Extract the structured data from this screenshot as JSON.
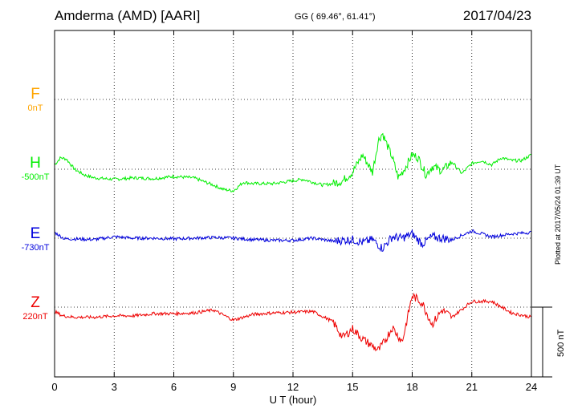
{
  "header": {
    "title": "Amderma (AMD)  [AARI]",
    "coords": "GG ( 69.46°,  61.41°)",
    "date": "2017/04/23"
  },
  "footer": {
    "plotted": "Plotted at 2017/05/24 01:39 UT",
    "scale": "500 nT"
  },
  "components": [
    {
      "letter": "F",
      "base": "0nT",
      "color": "#ffa500"
    },
    {
      "letter": "H",
      "base": "-500nT",
      "color": "#00ee00"
    },
    {
      "letter": "E",
      "base": "-730nT",
      "color": "#0000dd"
    },
    {
      "letter": "Z",
      "base": "220nT",
      "color": "#ee0000"
    }
  ],
  "chart_data": {
    "type": "line",
    "xlabel": "U T (hour)",
    "xlim": [
      0,
      24
    ],
    "xticks": [
      "0",
      "3",
      "6",
      "9",
      "12",
      "15",
      "18",
      "21",
      "24"
    ],
    "grid": true,
    "scale_bar_nT": 500,
    "series": [
      {
        "name": "H",
        "color": "#00ee00",
        "baseline_nT": -500,
        "x": [
          0,
          0.3,
          0.6,
          1,
          1.5,
          2,
          3,
          4,
          5,
          6,
          7,
          8,
          8.5,
          9,
          9.5,
          10,
          11,
          12,
          12.5,
          13,
          13.5,
          14,
          14.5,
          15,
          15.5,
          16,
          16.3,
          16.5,
          16.7,
          17,
          17.3,
          17.6,
          18,
          18.3,
          18.7,
          19,
          19.5,
          20,
          20.5,
          21,
          21.5,
          22,
          22.5,
          23,
          23.5,
          24
        ],
        "values": [
          -470,
          -420,
          -430,
          -500,
          -540,
          -560,
          -570,
          -560,
          -565,
          -550,
          -560,
          -610,
          -640,
          -650,
          -590,
          -600,
          -600,
          -580,
          -570,
          -590,
          -610,
          -600,
          -580,
          -520,
          -400,
          -520,
          -300,
          -250,
          -320,
          -420,
          -560,
          -500,
          -400,
          -420,
          -540,
          -480,
          -510,
          -450,
          -530,
          -460,
          -440,
          -470,
          -420,
          -440,
          -440,
          -400
        ]
      },
      {
        "name": "E",
        "color": "#0000dd",
        "baseline_nT": -730,
        "x": [
          0,
          0.5,
          1,
          2,
          3,
          4,
          5,
          6,
          7,
          8,
          9,
          10,
          11,
          12,
          13,
          14,
          15,
          15.5,
          16,
          16.5,
          17,
          17.5,
          18,
          18.5,
          19,
          20,
          21,
          22,
          23,
          24
        ],
        "values": [
          -690,
          -735,
          -735,
          -740,
          -720,
          -730,
          -730,
          -735,
          -730,
          -725,
          -730,
          -740,
          -745,
          -745,
          -730,
          -750,
          -740,
          -760,
          -740,
          -800,
          -720,
          -730,
          -700,
          -770,
          -720,
          -740,
          -680,
          -720,
          -700,
          -690
        ]
      },
      {
        "name": "Z",
        "color": "#ee0000",
        "baseline_nT": 220,
        "x": [
          0,
          0.4,
          1,
          2,
          3,
          4,
          5,
          6,
          7,
          8,
          9,
          10,
          11,
          12,
          13,
          14,
          14.5,
          15,
          15.5,
          16,
          16.3,
          16.6,
          17,
          17.5,
          18,
          18.5,
          19,
          19.5,
          20,
          21,
          22,
          23,
          24
        ],
        "values": [
          190,
          160,
          150,
          150,
          160,
          160,
          175,
          175,
          180,
          200,
          130,
          170,
          180,
          185,
          190,
          120,
          10,
          70,
          0,
          -50,
          -80,
          -20,
          80,
          -20,
          300,
          250,
          100,
          200,
          150,
          260,
          260,
          180,
          150
        ]
      }
    ]
  }
}
